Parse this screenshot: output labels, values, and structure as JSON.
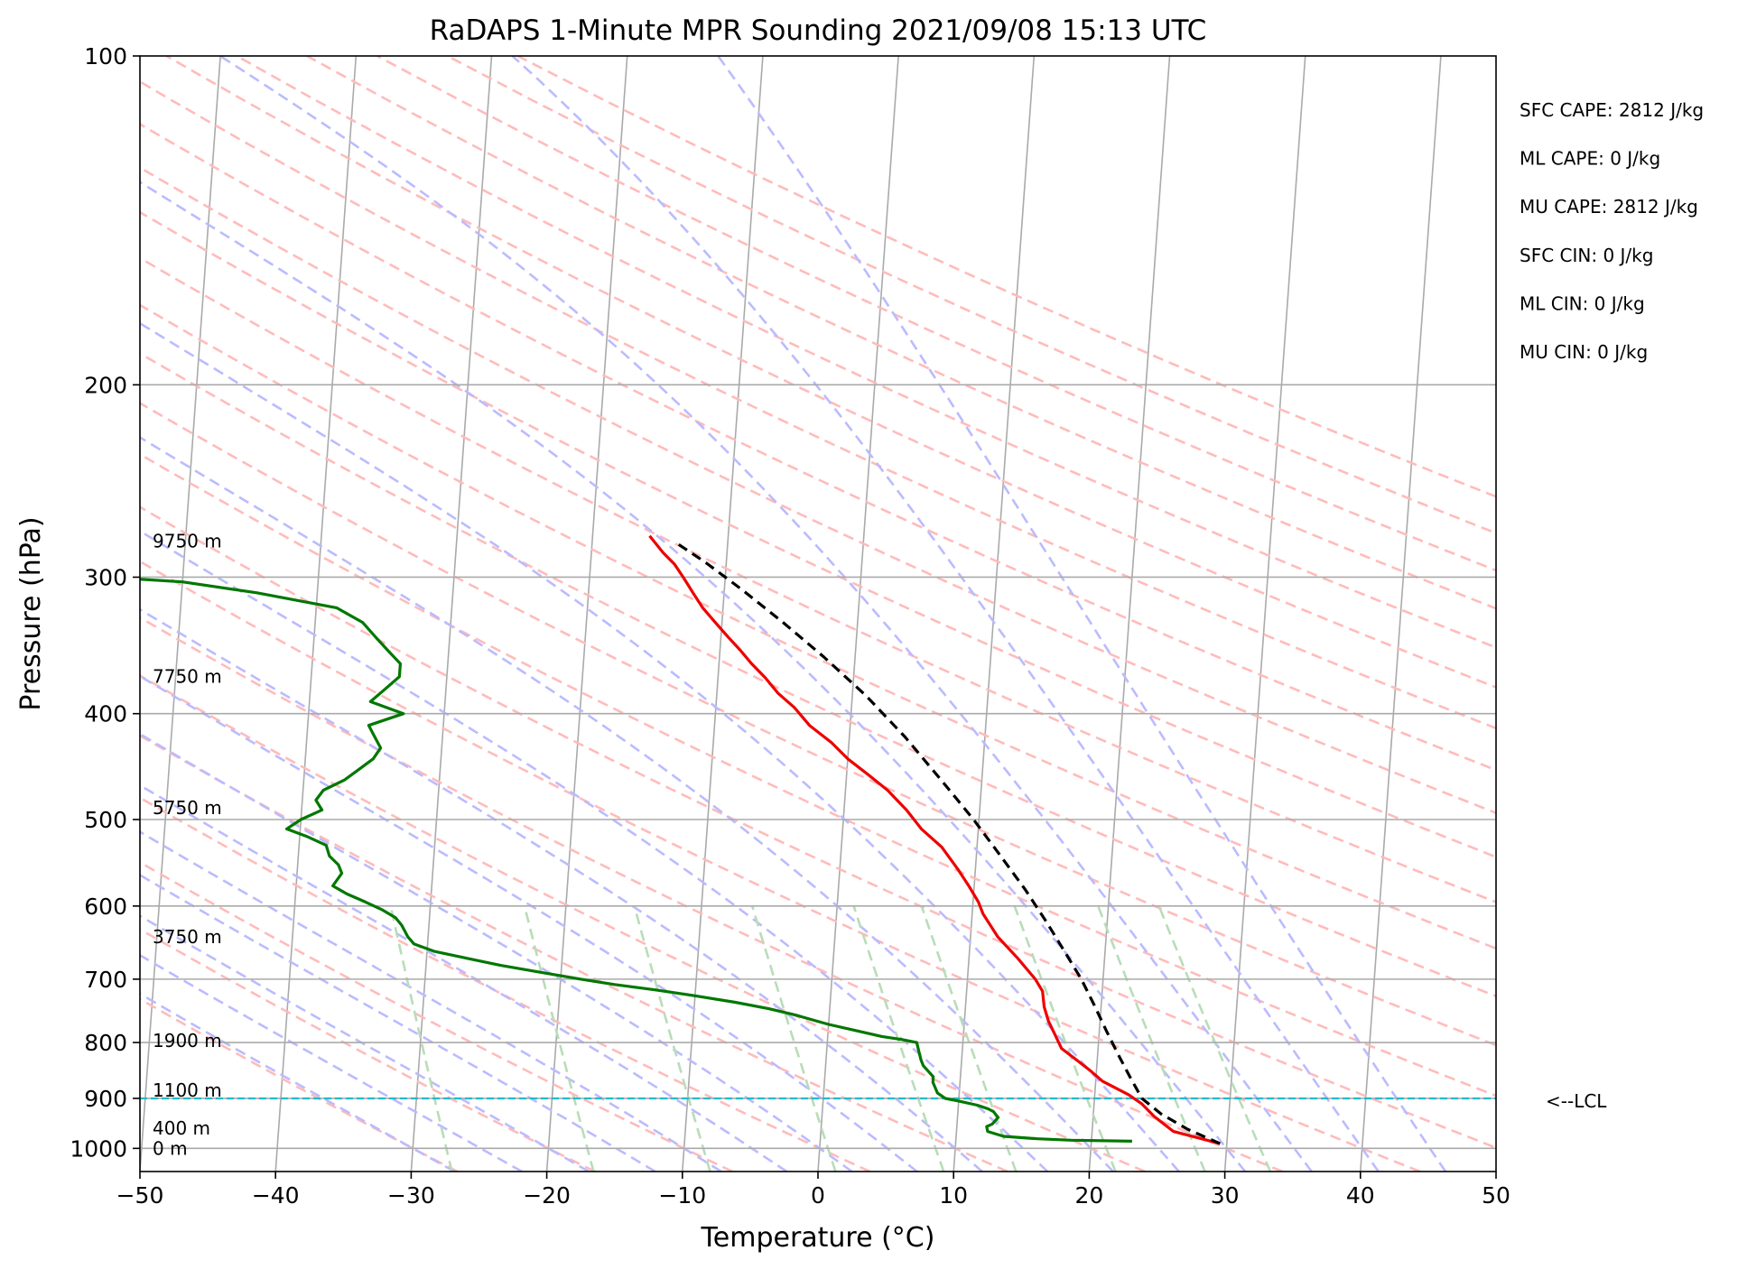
{
  "chart_data": {
    "type": "line",
    "title": "RaDAPS 1-Minute MPR Sounding 2021/09/08 15:13 UTC",
    "xlabel": "Temperature (°C)",
    "ylabel": "Pressure (hPa)",
    "xlim": [
      -50,
      50
    ],
    "ylim": [
      1050,
      100
    ],
    "y_scale": "log",
    "skew": "skew-T log-p",
    "grid": true,
    "x_ticks": [
      "−50",
      "−40",
      "−30",
      "−20",
      "−10",
      "0",
      "10",
      "20",
      "30",
      "40",
      "50"
    ],
    "y_ticks": [
      "100",
      "200",
      "300",
      "400",
      "500",
      "600",
      "700",
      "800",
      "900",
      "1000"
    ],
    "series": [
      {
        "name": "",
        "color": "#ee0000",
        "points": [
          [
            29.5,
            990
          ],
          [
            26,
            965
          ],
          [
            24.5,
            935
          ],
          [
            23.5,
            910
          ],
          [
            22.5,
            893
          ],
          [
            20.5,
            868
          ],
          [
            19.6,
            850
          ],
          [
            18.6,
            832
          ],
          [
            17.3,
            810
          ],
          [
            16.7,
            785
          ],
          [
            16.2,
            765
          ],
          [
            15.8,
            742
          ],
          [
            15.6,
            718
          ],
          [
            15.0,
            700
          ],
          [
            13.6,
            670
          ],
          [
            12.0,
            640
          ],
          [
            10.8,
            610
          ],
          [
            10.4,
            595
          ],
          [
            9.6,
            575
          ],
          [
            8.7,
            555
          ],
          [
            7.4,
            530
          ],
          [
            5.8,
            510
          ],
          [
            4.6,
            490
          ],
          [
            3.1,
            470
          ],
          [
            1.6,
            455
          ],
          [
            0.0,
            440
          ],
          [
            -1.3,
            425
          ],
          [
            -3.0,
            410
          ],
          [
            -4.2,
            395
          ],
          [
            -5.5,
            383
          ],
          [
            -6.5,
            371
          ],
          [
            -7.6,
            360
          ],
          [
            -8.5,
            350
          ],
          [
            -9.5,
            340
          ],
          [
            -10.5,
            330
          ],
          [
            -11.5,
            320
          ],
          [
            -12.3,
            310
          ],
          [
            -13.1,
            300
          ],
          [
            -13.8,
            292
          ],
          [
            -14.7,
            285
          ],
          [
            -15.8,
            275
          ]
        ]
      },
      {
        "name": "",
        "color": "#007700",
        "points": [
          [
            23.0,
            985
          ],
          [
            18.5,
            983
          ],
          [
            16.0,
            980
          ],
          [
            13.5,
            975
          ],
          [
            12.3,
            965
          ],
          [
            12.2,
            955
          ],
          [
            12.6,
            950
          ],
          [
            13.0,
            937
          ],
          [
            12.6,
            925
          ],
          [
            12.2,
            920
          ],
          [
            11.4,
            913
          ],
          [
            10.0,
            905
          ],
          [
            9.0,
            900
          ],
          [
            8.4,
            890
          ],
          [
            8.2,
            880
          ],
          [
            8.0,
            870
          ],
          [
            8.0,
            860
          ],
          [
            7.6,
            850
          ],
          [
            7.2,
            840
          ],
          [
            7.0,
            830
          ],
          [
            6.8,
            815
          ],
          [
            6.6,
            800
          ],
          [
            5.5,
            795
          ],
          [
            4.0,
            790
          ],
          [
            2.0,
            780
          ],
          [
            0.0,
            770
          ],
          [
            -2.5,
            755
          ],
          [
            -4.5,
            745
          ],
          [
            -7.0,
            735
          ],
          [
            -10.0,
            725
          ],
          [
            -13.0,
            716
          ],
          [
            -16.0,
            708
          ],
          [
            -18.5,
            700
          ],
          [
            -21.5,
            690
          ],
          [
            -24.5,
            680
          ],
          [
            -27.0,
            670
          ],
          [
            -29.5,
            660
          ],
          [
            -31.0,
            650
          ],
          [
            -31.5,
            640
          ],
          [
            -32.0,
            625
          ],
          [
            -32.5,
            615
          ],
          [
            -33.5,
            605
          ],
          [
            -34.8,
            595
          ],
          [
            -36.2,
            585
          ],
          [
            -37.3,
            575
          ],
          [
            -36.7,
            560
          ],
          [
            -37.0,
            550
          ],
          [
            -37.7,
            540
          ],
          [
            -38.0,
            528
          ],
          [
            -39.5,
            518
          ],
          [
            -41.0,
            510
          ],
          [
            -40.0,
            500
          ],
          [
            -38.5,
            490
          ],
          [
            -39.0,
            480
          ],
          [
            -38.5,
            470
          ],
          [
            -37.0,
            460
          ],
          [
            -36.0,
            450
          ],
          [
            -35.0,
            440
          ],
          [
            -34.5,
            430
          ],
          [
            -35.0,
            420
          ],
          [
            -35.5,
            410
          ],
          [
            -33.0,
            400
          ],
          [
            -35.5,
            390
          ],
          [
            -34.5,
            380
          ],
          [
            -33.5,
            370
          ],
          [
            -33.5,
            360
          ],
          [
            -34.5,
            350
          ],
          [
            -35.5,
            340
          ],
          [
            -36.5,
            330
          ],
          [
            -38.5,
            320
          ],
          [
            -44.5,
            310
          ],
          [
            -50.0,
            303
          ],
          [
            -63.0,
            296
          ]
        ]
      },
      {
        "name": "",
        "color": "#000000",
        "style": "dashed",
        "points": [
          [
            29.5,
            990
          ],
          [
            27.0,
            960
          ],
          [
            25.0,
            930
          ],
          [
            23.5,
            900
          ],
          [
            22.5,
            860
          ],
          [
            21.5,
            820
          ],
          [
            20.5,
            780
          ],
          [
            19.5,
            740
          ],
          [
            18.4,
            700
          ],
          [
            17.0,
            660
          ],
          [
            15.5,
            620
          ],
          [
            13.8,
            580
          ],
          [
            11.8,
            540
          ],
          [
            9.6,
            500
          ],
          [
            7.0,
            460
          ],
          [
            4.1,
            420
          ],
          [
            1.0,
            385
          ],
          [
            -2.3,
            355
          ],
          [
            -5.5,
            330
          ],
          [
            -8.7,
            308
          ],
          [
            -11.5,
            291
          ],
          [
            -14.0,
            278
          ]
        ]
      }
    ],
    "lcl_pressure": 900,
    "lcl_label": "<--LCL",
    "height_labels": [
      {
        "label": "9750 m",
        "pressure": 278
      },
      {
        "label": "7750 m",
        "pressure": 370
      },
      {
        "label": "5750 m",
        "pressure": 488
      },
      {
        "label": "3750 m",
        "pressure": 640
      },
      {
        "label": "1900 m",
        "pressure": 797
      },
      {
        "label": "1100 m",
        "pressure": 885
      },
      {
        "label": "400 m",
        "pressure": 958
      },
      {
        "label": "0 m",
        "pressure": 1000
      }
    ],
    "stats": [
      "SFC CAPE: 2812 J/kg",
      "ML CAPE: 0 J/kg",
      "MU CAPE: 2812 J/kg",
      "SFC CIN: 0 J/kg",
      "ML CIN: 0 J/kg",
      "MU CIN: 0 J/kg"
    ],
    "reference_colors": {
      "isotherm": "#aaaaaa",
      "dry_adiabat": "#ffbbbb",
      "moist_adiabat": "#bbbbff",
      "mixing_ratio": "#b8ddb8",
      "lcl_line": "#22bbcc"
    }
  }
}
